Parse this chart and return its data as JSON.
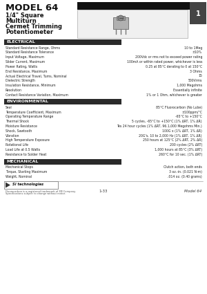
{
  "title_model": "MODEL 64",
  "title_line1": "1/4\" Square",
  "title_line2": "Multiturn",
  "title_line3": "Cermet Trimming",
  "title_line4": "Potentiometer",
  "page_num": "1",
  "section_electrical": "ELECTRICAL",
  "electrical_rows": [
    [
      "Standard Resistance Range, Ohms",
      "10 to 1Meg"
    ],
    [
      "Standard Resistance Tolerance",
      "±10%"
    ],
    [
      "Input Voltage, Maximum",
      "200Vdc or rms not to exceed power rating"
    ],
    [
      "Slider Current, Maximum",
      "100mA or within rated power, whichever is less"
    ],
    [
      "Power Rating, Watts",
      "0.25 at 85°C derating to 0 at 150°C"
    ],
    [
      "End Resistance, Maximum",
      "3 Ohms"
    ],
    [
      "Actual Electrical Travel, Turns, Nominal",
      "15"
    ],
    [
      "Dielectric Strength",
      "500Vrms"
    ],
    [
      "Insulation Resistance, Minimum",
      "1,000 Megohms"
    ],
    [
      "Resolution",
      "Essentially infinite"
    ],
    [
      "Contact Resistance Variation, Maximum",
      "1% or 1 Ohm, whichever is greater"
    ]
  ],
  "section_environmental": "ENVIRONMENTAL",
  "environmental_rows": [
    [
      "Seal",
      "85°C Fluorocarbon (No Lube)"
    ],
    [
      "Temperature Coefficient, Maximum",
      "±100ppm/°C"
    ],
    [
      "Operating Temperature Range",
      "-65°C to +150°C"
    ],
    [
      "Thermal Shock",
      "5 cycles, -65°C to +150°C (1% ΔRT, 1% ΔR)"
    ],
    [
      "Moisture Resistance",
      "Tes 24 hour cycles (1% ΔRT, 96.1,000 Megohms Min.)"
    ],
    [
      "Shock, Sawtooth",
      "100G x (1% ΔRT, 1% ΔR)"
    ],
    [
      "Vibration",
      "20G's, 10 to 2,000 Hz (1% ΔRT, 1% ΔR)"
    ],
    [
      "High Temperature Exposure",
      "250 hours at 125°C (2% ΔRT, 2% ΔR)"
    ],
    [
      "Rotational Life",
      "200 cycles (2% ΔRT)"
    ],
    [
      "Load Life at 0.5 Watts",
      "1,000 hours at 85°C (3% ΔRT)"
    ],
    [
      "Resistance to Solder Heat",
      "260°C for 10 sec. (1% ΔRT)"
    ]
  ],
  "section_mechanical": "MECHANICAL",
  "mechanical_rows": [
    [
      "Mechanical Stops",
      "Clutch action, both ends"
    ],
    [
      "Torque, Starting Maximum",
      "3 oz.-in. (0.021 N-m)"
    ],
    [
      "Weight, Nominal",
      ".014 oz. (0.40 grams)"
    ]
  ],
  "footer_left1": "Fluorocarbon is a registered trademark of 3M Company.",
  "footer_left2": "Specifications subject to change without notice.",
  "footer_page": "1-33",
  "footer_model": "Model 64"
}
